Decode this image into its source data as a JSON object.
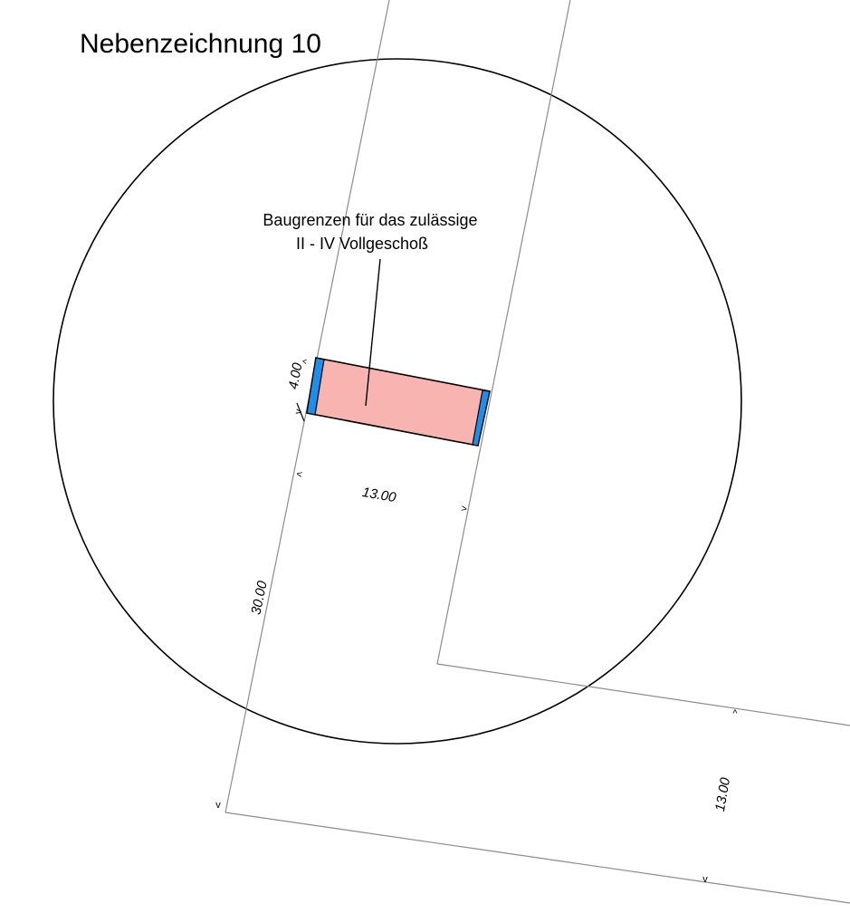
{
  "title": "Nebenzeichnung 10",
  "label": {
    "line1": "Baugrenzen für das zulässige",
    "line2": "II - IV Vollgeschoß"
  },
  "dimensions": {
    "building_depth": "4.00",
    "building_width": "13.00",
    "street_length": "30.00",
    "street_width": "13.00"
  },
  "colors": {
    "building_fill": "#f8b4b0",
    "building_edge_marker": "#1f8ee8",
    "outline": "#000000",
    "street_line": "#8c8c8c"
  }
}
